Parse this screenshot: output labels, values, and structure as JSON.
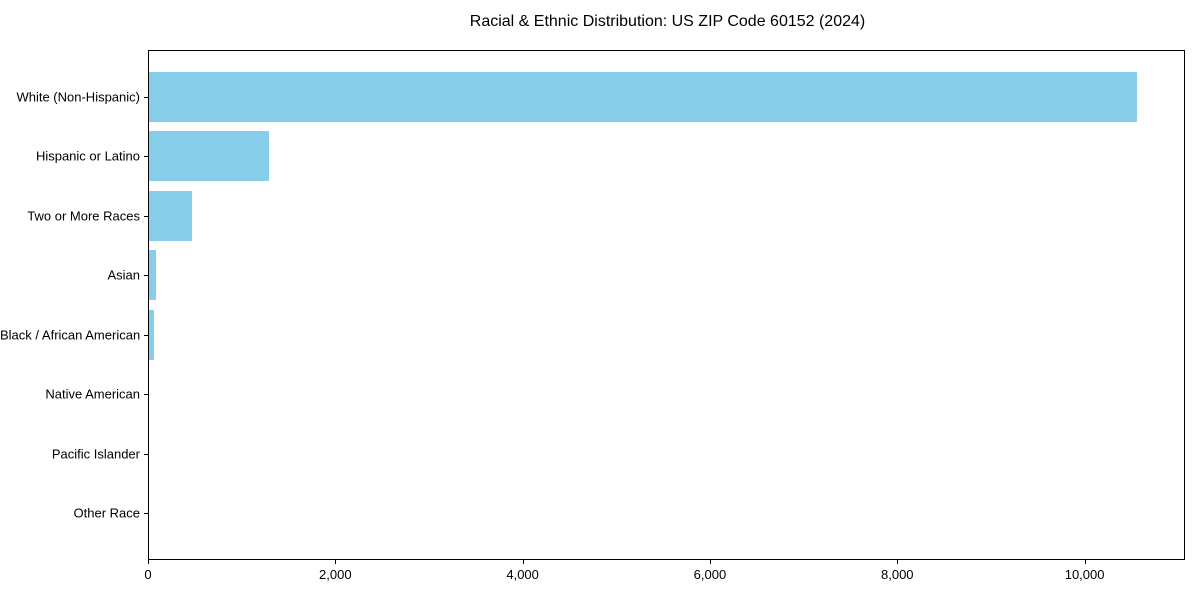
{
  "chart_data": {
    "type": "bar",
    "orientation": "horizontal",
    "title": "Racial & Ethnic Distribution: US ZIP Code 60152 (2024)",
    "categories": [
      "White (Non-Hispanic)",
      "Hispanic or Latino",
      "Two or More Races",
      "Asian",
      "Black / African American",
      "Native American",
      "Pacific Islander",
      "Other Race"
    ],
    "values": [
      10545,
      1285,
      460,
      70,
      58,
      0,
      0,
      0
    ],
    "xlabel": "",
    "ylabel": "",
    "xlim": [
      0,
      11072
    ],
    "x_ticks": [
      0,
      2000,
      4000,
      6000,
      8000,
      10000
    ],
    "x_tick_labels": [
      "0",
      "2,000",
      "4,000",
      "6,000",
      "8,000",
      "10,000"
    ],
    "bar_color": "#87CEEB",
    "spine_color": "#000000",
    "grid": false,
    "legend": null
  }
}
